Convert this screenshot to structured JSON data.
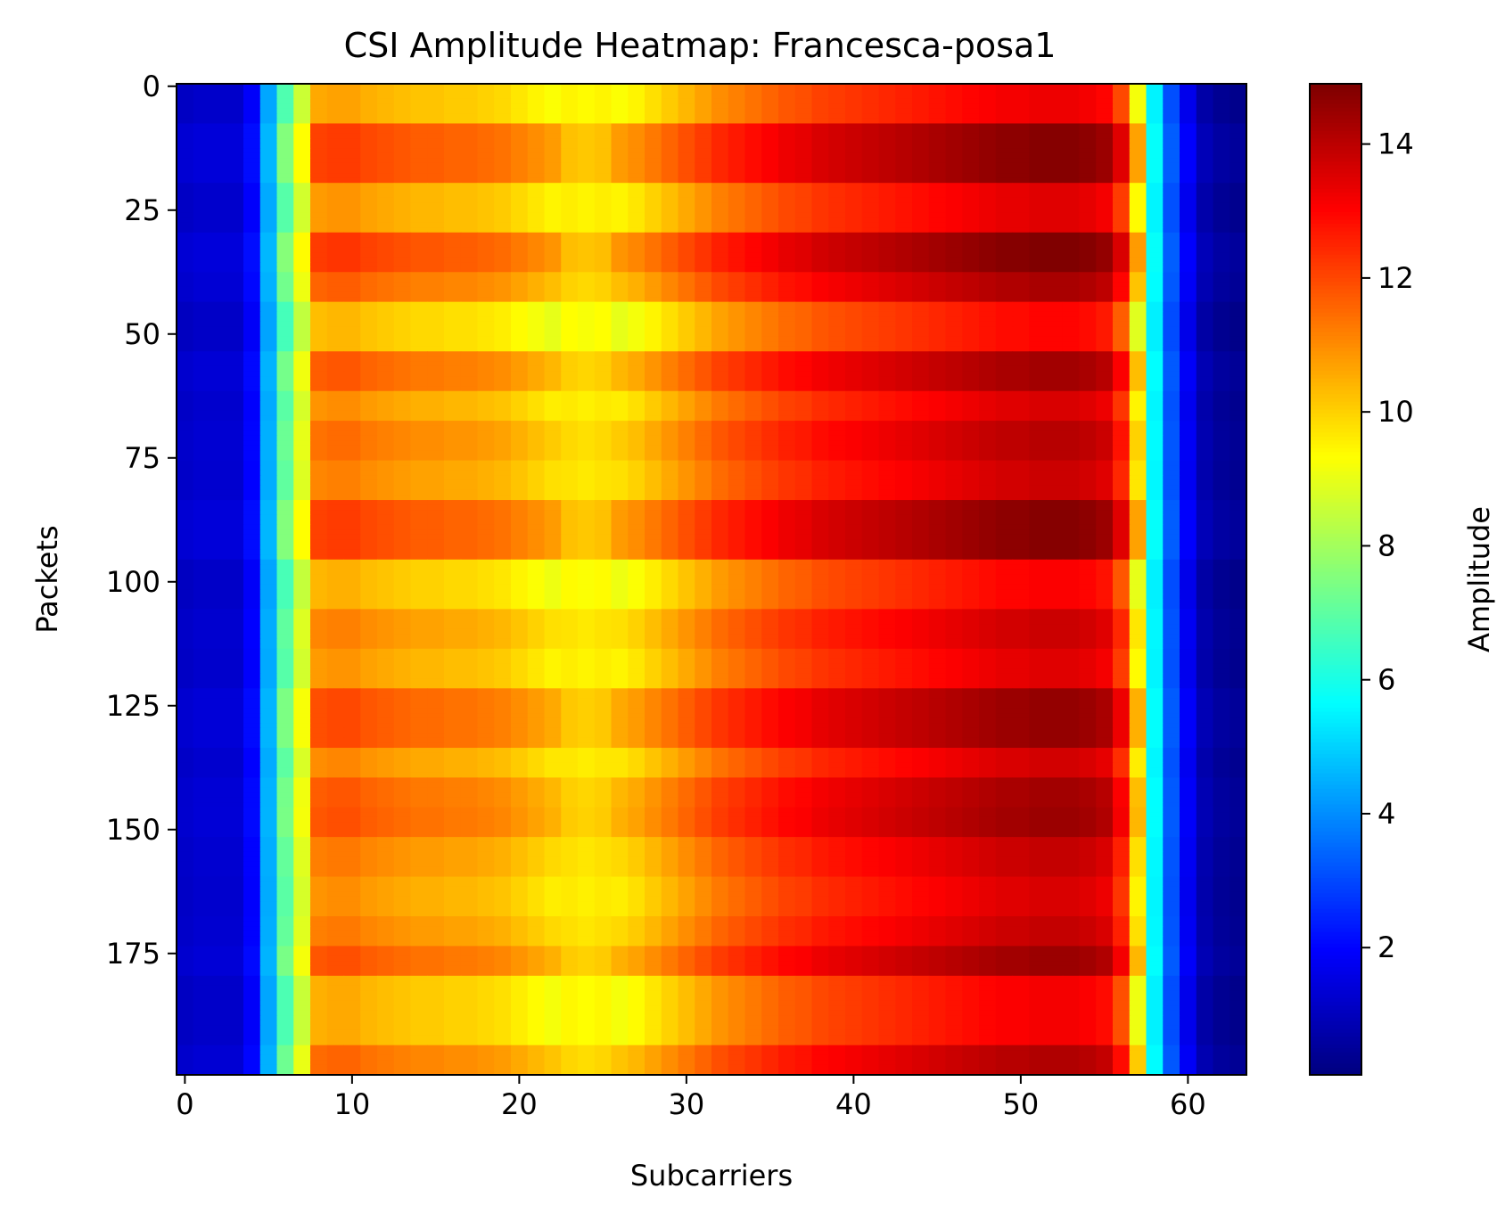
{
  "chart_data": {
    "type": "heatmap",
    "title": "CSI Amplitude Heatmap: Francesca-posa1",
    "xlabel": "Subcarriers",
    "ylabel": "Packets",
    "colorbar_label": "Amplitude",
    "colormap": "jet",
    "n_cols": 64,
    "n_rows": 200,
    "xlim": [
      -0.5,
      63.5
    ],
    "ylim": [
      199.5,
      -0.5
    ],
    "clim": [
      0.1,
      14.9
    ],
    "xticks": [
      0,
      10,
      20,
      30,
      40,
      50,
      60
    ],
    "yticks": [
      0,
      25,
      50,
      75,
      100,
      125,
      150,
      175
    ],
    "cbar_ticks": [
      2,
      4,
      6,
      8,
      10,
      12,
      14
    ],
    "column_profile": [
      1.2,
      1.3,
      1.3,
      1.3,
      2.0,
      4.5,
      7.2,
      9.0,
      11.4,
      11.5,
      11.5,
      11.3,
      11.2,
      11.1,
      11.0,
      11.0,
      10.9,
      10.9,
      10.8,
      10.7,
      10.5,
      10.3,
      10.1,
      9.9,
      9.8,
      9.9,
      10.1,
      10.3,
      10.6,
      10.9,
      11.2,
      11.5,
      11.8,
      12.0,
      12.2,
      12.4,
      12.6,
      12.7,
      12.9,
      13.0,
      13.1,
      13.2,
      13.3,
      13.4,
      13.5,
      13.6,
      13.7,
      13.8,
      13.9,
      14.0,
      14.0,
      14.1,
      14.1,
      14.1,
      14.0,
      13.8,
      12.8,
      10.0,
      5.6,
      3.2,
      1.8,
      0.8,
      0.5,
      0.4
    ],
    "row_modulation": [
      {
        "start": 0,
        "end": 8,
        "delta": -0.8
      },
      {
        "start": 8,
        "end": 20,
        "delta": 0.7
      },
      {
        "start": 20,
        "end": 30,
        "delta": -0.6
      },
      {
        "start": 30,
        "end": 38,
        "delta": 0.8
      },
      {
        "start": 38,
        "end": 44,
        "delta": 0.2
      },
      {
        "start": 44,
        "end": 54,
        "delta": -1.1
      },
      {
        "start": 54,
        "end": 62,
        "delta": 0.3
      },
      {
        "start": 62,
        "end": 68,
        "delta": -0.5
      },
      {
        "start": 68,
        "end": 76,
        "delta": 0.0
      },
      {
        "start": 76,
        "end": 84,
        "delta": -0.3
      },
      {
        "start": 84,
        "end": 96,
        "delta": 0.7
      },
      {
        "start": 96,
        "end": 106,
        "delta": -1.0
      },
      {
        "start": 106,
        "end": 114,
        "delta": -0.3
      },
      {
        "start": 114,
        "end": 122,
        "delta": -0.6
      },
      {
        "start": 122,
        "end": 134,
        "delta": 0.5
      },
      {
        "start": 134,
        "end": 140,
        "delta": -0.4
      },
      {
        "start": 140,
        "end": 146,
        "delta": 0.3
      },
      {
        "start": 146,
        "end": 152,
        "delta": 0.4
      },
      {
        "start": 152,
        "end": 160,
        "delta": -0.2
      },
      {
        "start": 160,
        "end": 168,
        "delta": -0.5
      },
      {
        "start": 168,
        "end": 174,
        "delta": -0.2
      },
      {
        "start": 174,
        "end": 180,
        "delta": 0.4
      },
      {
        "start": 180,
        "end": 194,
        "delta": -0.9
      },
      {
        "start": 194,
        "end": 200,
        "delta": 0.1
      }
    ]
  }
}
